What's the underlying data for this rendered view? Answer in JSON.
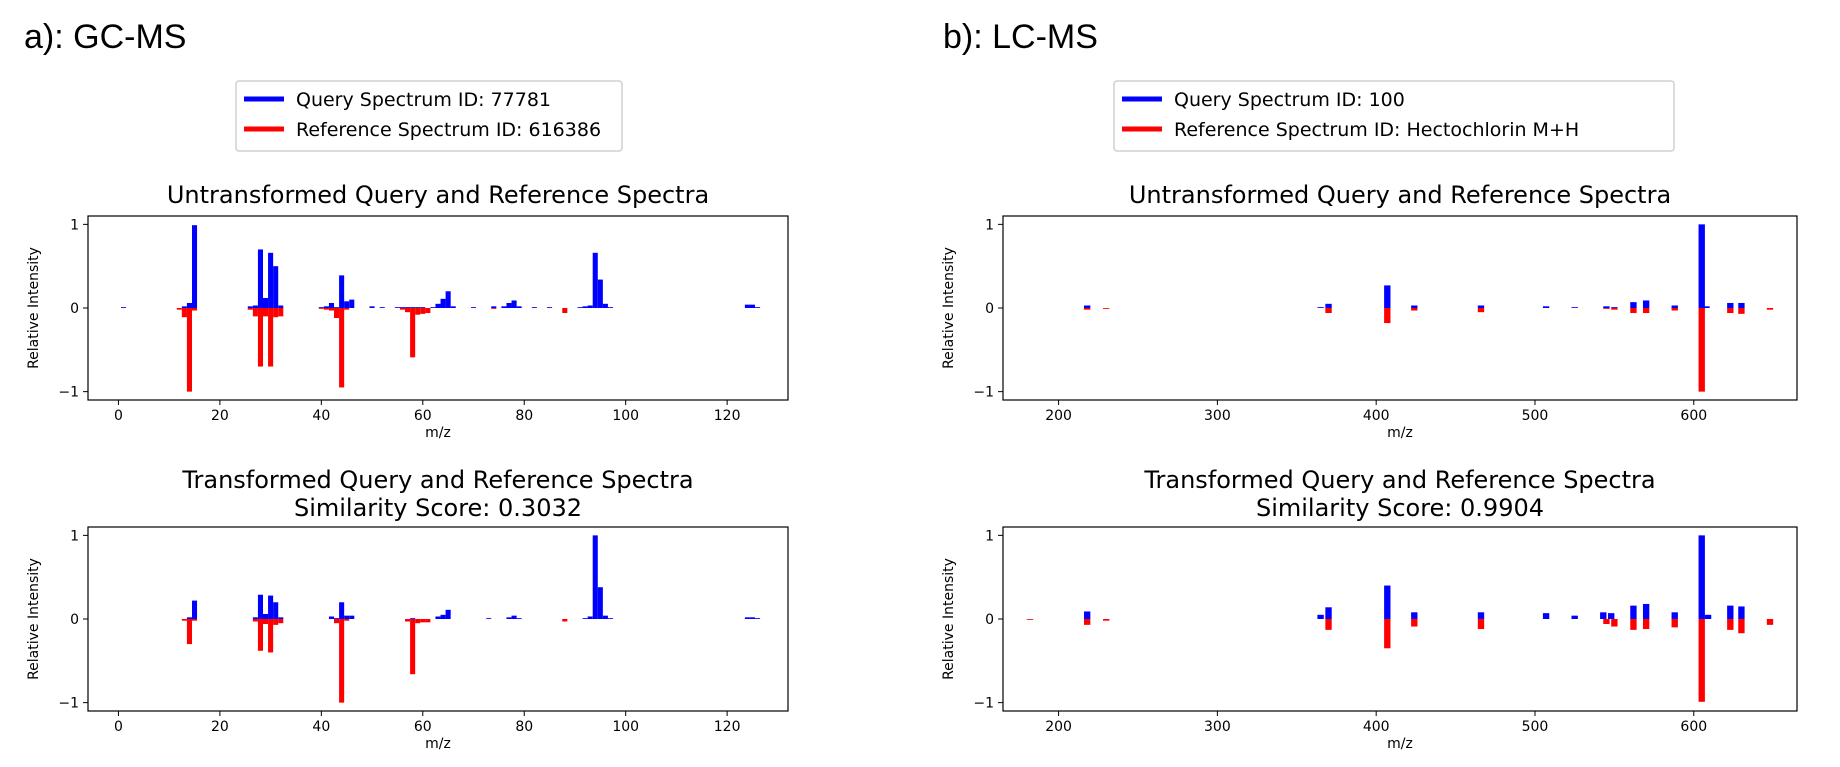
{
  "panels": [
    {
      "label": "a): GC-MS",
      "legend": {
        "query_label": "Query Spectrum ID: 77781",
        "reference_label": "Reference Spectrum ID: 616386",
        "query_color": "#0000ff",
        "reference_color": "#ff0000"
      }
    },
    {
      "label": "b): LC-MS",
      "legend": {
        "query_label": "Query Spectrum ID: 100",
        "reference_label": "Reference Spectrum ID: Hectochlorin M+H",
        "query_color": "#0000ff",
        "reference_color": "#ff0000"
      }
    }
  ],
  "chart_data": [
    {
      "panel": "a",
      "type": "bar",
      "title": "Untransformed Query and Reference Spectra",
      "subtitle": "",
      "xlabel": "m/z",
      "ylabel": "Relative Intensity",
      "xlim": [
        -6,
        132
      ],
      "ylim": [
        -1.1,
        1.1
      ],
      "xticks": [
        0,
        20,
        40,
        60,
        80,
        100,
        120
      ],
      "yticks": [
        -1,
        0,
        1
      ],
      "ytick_labels": [
        "−1",
        "0",
        "1"
      ],
      "bar_width": 1,
      "series": [
        {
          "name": "Query Spectrum ID: 77781",
          "x": [
            1,
            13,
            14,
            15,
            26,
            27,
            28,
            29,
            30,
            31,
            32,
            40,
            41,
            42,
            43,
            44,
            45,
            46,
            50,
            52,
            55,
            56,
            57,
            58,
            59,
            60,
            62,
            63,
            64,
            65,
            66,
            70,
            74,
            76,
            77,
            78,
            79,
            82,
            85,
            91,
            92,
            93,
            94,
            95,
            96,
            97,
            124,
            125,
            126
          ],
          "y": [
            0.01,
            0.02,
            0.06,
            0.99,
            0.02,
            0.03,
            0.7,
            0.12,
            0.66,
            0.5,
            0.03,
            0.01,
            0.02,
            0.06,
            0.01,
            0.39,
            0.08,
            0.1,
            0.02,
            0.01,
            0.01,
            0.01,
            0.01,
            0.01,
            0.01,
            0.01,
            0.01,
            0.05,
            0.11,
            0.2,
            0.02,
            0.01,
            0.02,
            0.02,
            0.06,
            0.09,
            0.02,
            0.01,
            0.01,
            0.01,
            0.02,
            0.03,
            0.66,
            0.34,
            0.05,
            0.01,
            0.04,
            0.04,
            0.01
          ]
        },
        {
          "name": "Reference Spectrum ID: 616386",
          "x": [
            12,
            13,
            14,
            15,
            26,
            27,
            28,
            29,
            30,
            31,
            32,
            40,
            41,
            42,
            43,
            44,
            45,
            56,
            57,
            58,
            59,
            60,
            61,
            74,
            88
          ],
          "y": [
            -0.02,
            -0.11,
            -1.0,
            -0.03,
            -0.02,
            -0.1,
            -0.7,
            -0.1,
            -0.7,
            -0.11,
            -0.1,
            -0.01,
            -0.02,
            -0.03,
            -0.12,
            -0.95,
            -0.02,
            -0.02,
            -0.05,
            -0.59,
            -0.08,
            -0.07,
            -0.06,
            -0.01,
            -0.06
          ]
        }
      ]
    },
    {
      "panel": "a",
      "type": "bar",
      "title": "Transformed Query and Reference Spectra",
      "subtitle": "Similarity Score: 0.3032",
      "xlabel": "m/z",
      "ylabel": "Relative Intensity",
      "xlim": [
        -6,
        132
      ],
      "ylim": [
        -1.1,
        1.1
      ],
      "xticks": [
        0,
        20,
        40,
        60,
        80,
        100,
        120
      ],
      "yticks": [
        -1,
        0,
        1
      ],
      "ytick_labels": [
        "−1",
        "0",
        "1"
      ],
      "bar_width": 1,
      "series": [
        {
          "name": "Query Spectrum ID: 77781",
          "x": [
            14,
            15,
            27,
            28,
            29,
            30,
            31,
            32,
            42,
            43,
            44,
            45,
            46,
            58,
            63,
            64,
            65,
            73,
            77,
            78,
            79,
            92,
            93,
            94,
            95,
            96,
            97,
            124,
            125,
            126
          ],
          "y": [
            0.02,
            0.22,
            0.02,
            0.29,
            0.06,
            0.28,
            0.2,
            0.02,
            0.03,
            0.01,
            0.2,
            0.04,
            0.04,
            0.01,
            0.03,
            0.05,
            0.11,
            0.01,
            0.02,
            0.04,
            0.01,
            0.01,
            0.03,
            1.0,
            0.38,
            0.04,
            0.01,
            0.02,
            0.02,
            0.01
          ]
        },
        {
          "name": "Reference Spectrum ID: 616386",
          "x": [
            13,
            14,
            15,
            27,
            28,
            29,
            30,
            31,
            32,
            43,
            44,
            45,
            57,
            58,
            59,
            60,
            61,
            88
          ],
          "y": [
            -0.02,
            -0.3,
            -0.02,
            -0.03,
            -0.38,
            -0.06,
            -0.4,
            -0.07,
            -0.05,
            -0.05,
            -1.0,
            -0.02,
            -0.03,
            -0.66,
            -0.05,
            -0.04,
            -0.04,
            -0.03
          ]
        }
      ]
    },
    {
      "panel": "b",
      "type": "bar",
      "title": "Untransformed Query and Reference Spectra",
      "subtitle": "",
      "xlabel": "m/z",
      "ylabel": "Relative Intensity",
      "xlim": [
        165,
        665
      ],
      "ylim": [
        -1.1,
        1.1
      ],
      "xticks": [
        200,
        300,
        400,
        500,
        600
      ],
      "yticks": [
        -1,
        0,
        1
      ],
      "ytick_labels": [
        "−1",
        "0",
        "1"
      ],
      "bar_width": 4,
      "series": [
        {
          "name": "Query Spectrum ID: 100",
          "x": [
            218,
            365,
            370,
            407,
            424,
            466,
            507,
            525,
            545,
            550,
            562,
            570,
            588,
            605,
            608,
            623,
            630
          ],
          "y": [
            0.03,
            0.01,
            0.05,
            0.27,
            0.03,
            0.03,
            0.02,
            0.01,
            0.02,
            0.01,
            0.07,
            0.09,
            0.03,
            1.0,
            0.02,
            0.06,
            0.06
          ]
        },
        {
          "name": "Reference Spectrum ID: Hectochlorin M+H",
          "x": [
            218,
            230,
            370,
            407,
            424,
            466,
            545,
            550,
            562,
            570,
            588,
            605,
            623,
            630,
            648
          ],
          "y": [
            -0.02,
            -0.01,
            -0.06,
            -0.18,
            -0.03,
            -0.05,
            -0.01,
            -0.02,
            -0.06,
            -0.06,
            -0.03,
            -1.0,
            -0.06,
            -0.07,
            -0.02
          ]
        }
      ]
    },
    {
      "panel": "b",
      "type": "bar",
      "title": "Transformed Query and Reference Spectra",
      "subtitle": "Similarity Score: 0.9904",
      "xlabel": "m/z",
      "ylabel": "Relative Intensity",
      "xlim": [
        165,
        665
      ],
      "ylim": [
        -1.1,
        1.1
      ],
      "xticks": [
        200,
        300,
        400,
        500,
        600
      ],
      "yticks": [
        -1,
        0,
        1
      ],
      "ytick_labels": [
        "−1",
        "0",
        "1"
      ],
      "bar_width": 4,
      "series": [
        {
          "name": "Query Spectrum ID: 100",
          "x": [
            218,
            365,
            370,
            407,
            424,
            466,
            507,
            525,
            543,
            548,
            562,
            570,
            588,
            605,
            609,
            623,
            630
          ],
          "y": [
            0.09,
            0.05,
            0.14,
            0.4,
            0.08,
            0.08,
            0.07,
            0.04,
            0.08,
            0.07,
            0.16,
            0.18,
            0.08,
            1.0,
            0.05,
            0.16,
            0.15
          ]
        },
        {
          "name": "Reference Spectrum ID: Hectochlorin M+H",
          "x": [
            182,
            218,
            230,
            370,
            407,
            424,
            466,
            545,
            550,
            562,
            570,
            588,
            605,
            623,
            630,
            648
          ],
          "y": [
            -0.01,
            -0.07,
            -0.02,
            -0.13,
            -0.35,
            -0.09,
            -0.12,
            -0.06,
            -0.09,
            -0.13,
            -0.12,
            -0.1,
            -0.99,
            -0.13,
            -0.17,
            -0.07
          ]
        }
      ]
    }
  ]
}
